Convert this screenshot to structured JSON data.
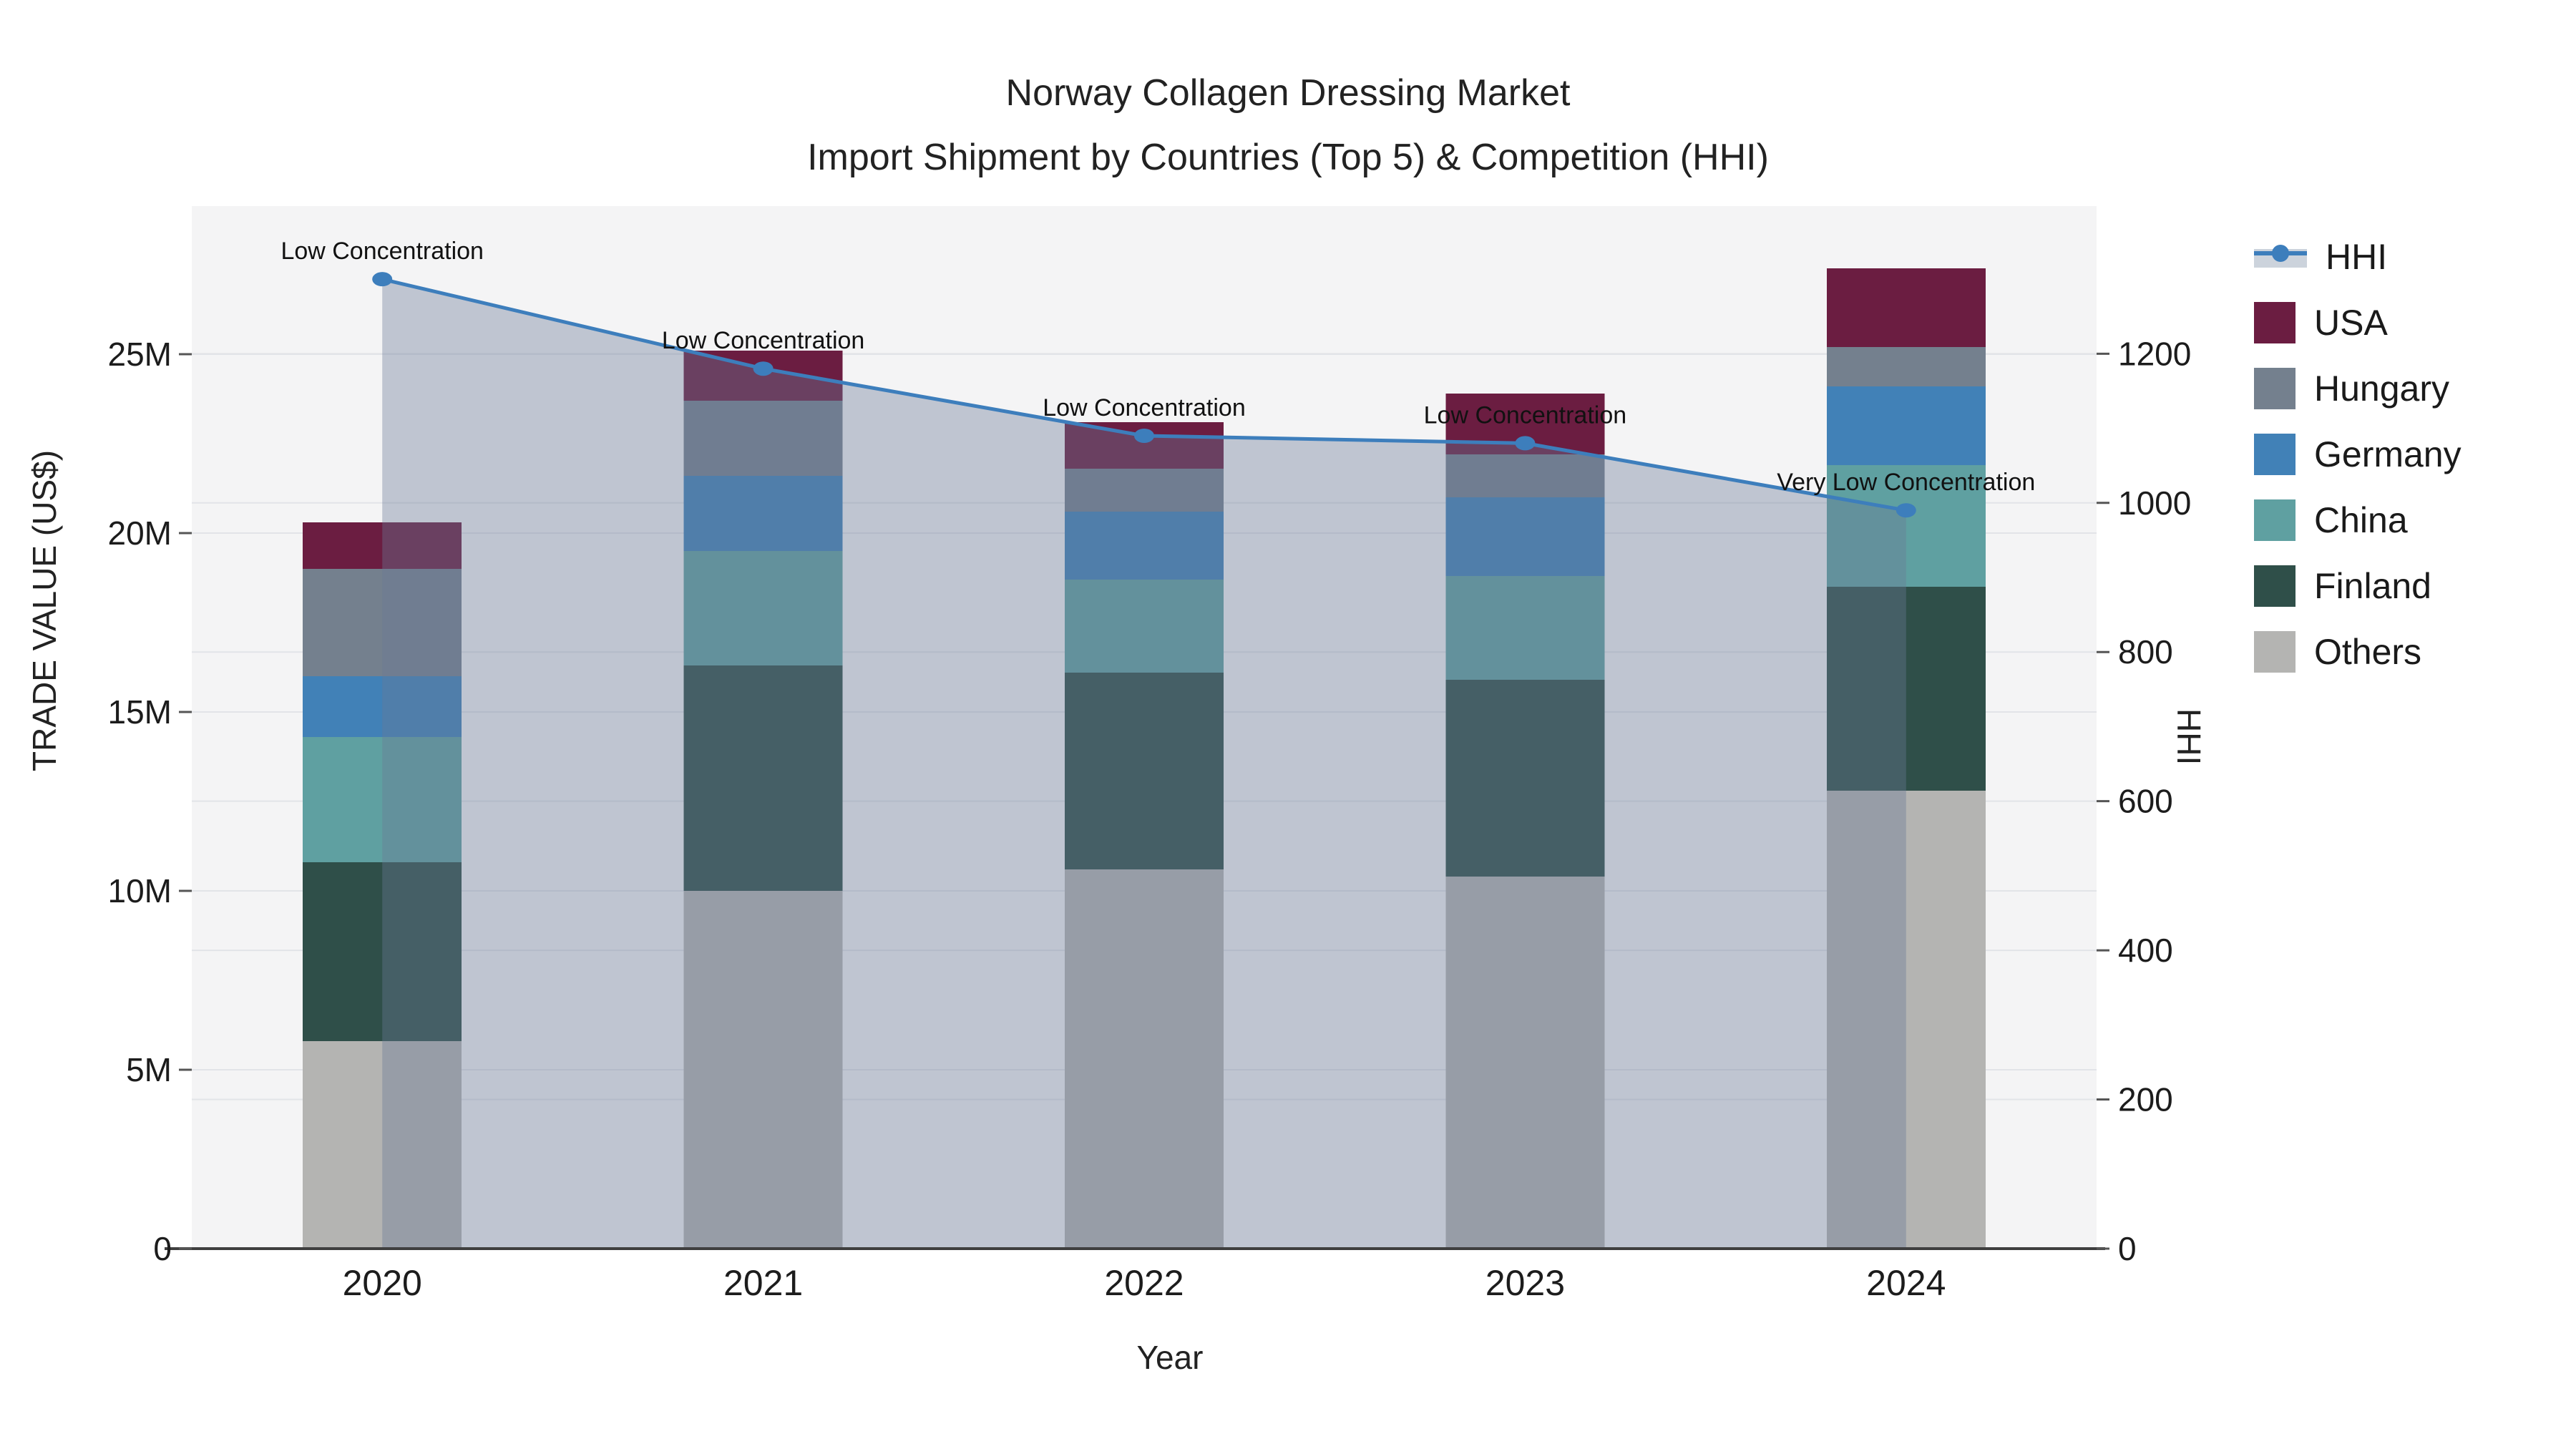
{
  "title": {
    "line1": "Norway Collagen Dressing Market",
    "line2": "Import Shipment by Countries (Top 5) & Competition (HHI)"
  },
  "axes": {
    "y_left": {
      "title": "TRADE VALUE (US$)",
      "tick_labels": [
        "0",
        "5M",
        "10M",
        "15M",
        "20M",
        "25M"
      ],
      "tick_values": [
        0,
        5,
        10,
        15,
        20,
        25
      ],
      "max": 29.14
    },
    "y_right": {
      "title": "HHI",
      "tick_labels": [
        "0",
        "200",
        "400",
        "600",
        "800",
        "1000",
        "1200"
      ],
      "tick_values": [
        0,
        200,
        400,
        600,
        800,
        1000,
        1200
      ],
      "max": 1398
    },
    "x": {
      "title": "Year",
      "categories": [
        "2020",
        "2021",
        "2022",
        "2023",
        "2024"
      ]
    }
  },
  "legend": [
    {
      "label": "HHI",
      "type": "line",
      "color": "#3d7ebc",
      "band": "#ccd3dc"
    },
    {
      "label": "USA",
      "type": "box",
      "color": "#6b1d41"
    },
    {
      "label": "Hungary",
      "type": "box",
      "color": "#74808e"
    },
    {
      "label": "Germany",
      "type": "box",
      "color": "#4181b7"
    },
    {
      "label": "China",
      "type": "box",
      "color": "#5fa0a1"
    },
    {
      "label": "Finland",
      "type": "box",
      "color": "#2f4f49"
    },
    {
      "label": "Others",
      "type": "box",
      "color": "#b4b4b2"
    }
  ],
  "chart_data": {
    "type": "bar",
    "subtype": "stacked-bars-with-line",
    "categories": [
      "2020",
      "2021",
      "2022",
      "2023",
      "2024"
    ],
    "series": [
      {
        "name": "Others",
        "axis": "left",
        "color": "#b4b4b2",
        "values": [
          5.8,
          10.0,
          10.6,
          10.4,
          12.8
        ]
      },
      {
        "name": "Finland",
        "axis": "left",
        "color": "#2f4f49",
        "values": [
          5.0,
          6.3,
          5.5,
          5.5,
          5.7
        ]
      },
      {
        "name": "China",
        "axis": "left",
        "color": "#5fa0a1",
        "values": [
          3.5,
          3.2,
          2.6,
          2.9,
          3.4
        ]
      },
      {
        "name": "Germany",
        "axis": "left",
        "color": "#4181b7",
        "values": [
          1.7,
          2.1,
          1.9,
          2.2,
          2.2
        ]
      },
      {
        "name": "Hungary",
        "axis": "left",
        "color": "#74808e",
        "values": [
          3.0,
          2.1,
          1.2,
          1.2,
          1.1
        ]
      },
      {
        "name": "USA",
        "axis": "left",
        "color": "#6b1d41",
        "values": [
          1.3,
          1.4,
          1.3,
          1.7,
          2.2
        ]
      }
    ],
    "line": {
      "name": "HHI",
      "axis": "right",
      "color": "#3d7ebc",
      "area_fill": "rgba(105,122,150,0.38)",
      "values": [
        1300,
        1180,
        1090,
        1080,
        990
      ]
    },
    "stack_totals": [
      20.3,
      25.1,
      23.1,
      23.9,
      27.4
    ],
    "annotations": [
      {
        "x": "2020",
        "text": "Low Concentration"
      },
      {
        "x": "2021",
        "text": "Low Concentration"
      },
      {
        "x": "2022",
        "text": "Low Concentration"
      },
      {
        "x": "2023",
        "text": "Low Concentration"
      },
      {
        "x": "2024",
        "text": "Very Low Concentration"
      }
    ],
    "title": "Norway Collagen Dressing Market — Import Shipment by Countries (Top 5) & Competition (HHI)",
    "xlabel": "Year",
    "ylabel_left": "TRADE VALUE (US$)",
    "ylabel_right": "HHI",
    "ylim_left": [
      0,
      29.14
    ],
    "ylim_right": [
      0,
      1398
    ],
    "grid": true,
    "legend_position": "right"
  },
  "style": {
    "plot_bg": "#f4f4f5",
    "grid_color": "#e2e4e8",
    "axis_line_color": "#3f3f3f",
    "tick_color": "#1c1c1c",
    "annotation_color": "#111111"
  }
}
